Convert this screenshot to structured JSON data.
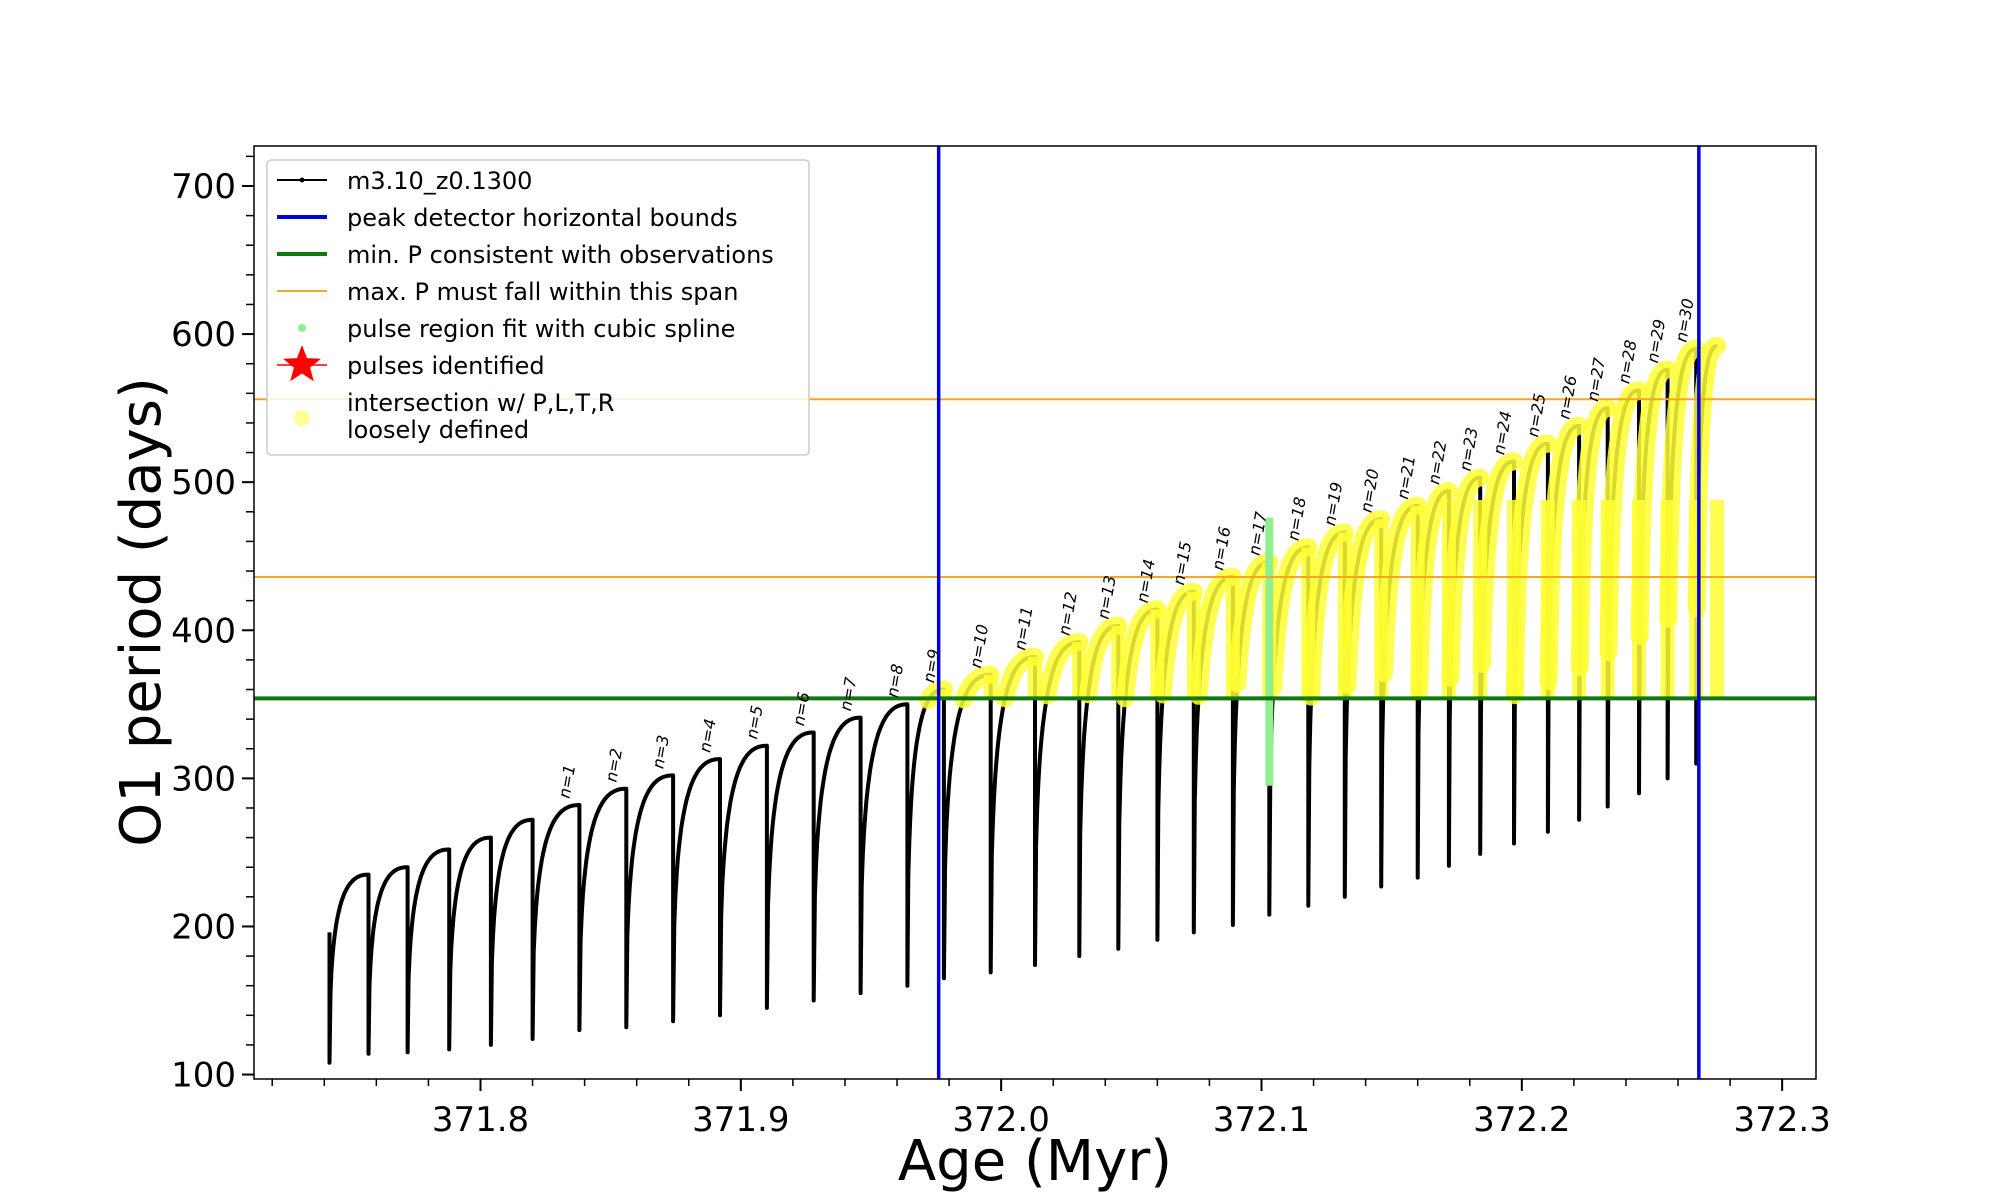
{
  "chart_data": {
    "type": "line",
    "title": "",
    "xlabel": "Age (Myr)",
    "ylabel": "O1 period (days)",
    "xlim": [
      371.713,
      372.313
    ],
    "ylim": [
      97,
      727
    ],
    "xticks": [
      "371.8",
      "371.9",
      "372.0",
      "372.1",
      "372.2",
      "372.3"
    ],
    "yticks": [
      "100",
      "200",
      "300",
      "400",
      "500",
      "600",
      "700"
    ],
    "grid": false,
    "legend_position": "upper-left",
    "legend": [
      {
        "key": "track",
        "label": "m3.10_z0.1300",
        "color": "#000000"
      },
      {
        "key": "bounds",
        "label": "peak detector horizontal bounds",
        "color": "#0000dd"
      },
      {
        "key": "minp",
        "label": "min. P consistent with observations",
        "color": "#117711"
      },
      {
        "key": "maxp",
        "label": "max. P must fall within this span",
        "color": "#f5a623"
      },
      {
        "key": "spline",
        "label": "pulse region fit with cubic spline",
        "color": "#90ee90"
      },
      {
        "key": "pulses",
        "label": "pulses identified",
        "color": "#ff0000"
      },
      {
        "key": "intersect",
        "label": "intersection w/ P,L,T,R\nloosely defined",
        "color": "#ffff66"
      }
    ],
    "vertical_lines": [
      371.976,
      372.268
    ],
    "min_period_line": 354,
    "max_period_span": [
      436,
      556
    ],
    "track_start": {
      "age": 371.742,
      "period_low": 108,
      "period_high": 196
    },
    "track_end_age": 372.275,
    "pulses": [
      {
        "label": "n=1",
        "age": 371.838,
        "min": 130,
        "max": 282
      },
      {
        "label": "n=2",
        "age": 371.856,
        "min": 132,
        "max": 293
      },
      {
        "label": "n=3",
        "age": 371.874,
        "min": 136,
        "max": 302
      },
      {
        "label": "n=4",
        "age": 371.892,
        "min": 140,
        "max": 313
      },
      {
        "label": "n=5",
        "age": 371.91,
        "min": 145,
        "max": 322
      },
      {
        "label": "n=6",
        "age": 371.928,
        "min": 150,
        "max": 331
      },
      {
        "label": "n=7",
        "age": 371.946,
        "min": 155,
        "max": 341
      },
      {
        "label": "n=8",
        "age": 371.964,
        "min": 160,
        "max": 350
      },
      {
        "label": "n=9",
        "age": 371.978,
        "min": 165,
        "max": 360
      },
      {
        "label": "n=10",
        "age": 371.996,
        "min": 169,
        "max": 370
      },
      {
        "label": "n=11",
        "age": 372.013,
        "min": 174,
        "max": 382
      },
      {
        "label": "n=12",
        "age": 372.03,
        "min": 180,
        "max": 392
      },
      {
        "label": "n=13",
        "age": 372.045,
        "min": 185,
        "max": 403
      },
      {
        "label": "n=14",
        "age": 372.06,
        "min": 191,
        "max": 414
      },
      {
        "label": "n=15",
        "age": 372.074,
        "min": 196,
        "max": 426
      },
      {
        "label": "n=16",
        "age": 372.089,
        "min": 201,
        "max": 436
      },
      {
        "label": "n=17",
        "age": 372.103,
        "min": 208,
        "max": 446
      },
      {
        "label": "n=18",
        "age": 372.118,
        "min": 214,
        "max": 456
      },
      {
        "label": "n=19",
        "age": 372.132,
        "min": 220,
        "max": 466
      },
      {
        "label": "n=20",
        "age": 372.146,
        "min": 227,
        "max": 475
      },
      {
        "label": "n=21",
        "age": 372.16,
        "min": 233,
        "max": 484
      },
      {
        "label": "n=22",
        "age": 372.172,
        "min": 241,
        "max": 494
      },
      {
        "label": "n=23",
        "age": 372.184,
        "min": 249,
        "max": 503
      },
      {
        "label": "n=24",
        "age": 372.197,
        "min": 256,
        "max": 514
      },
      {
        "label": "n=25",
        "age": 372.21,
        "min": 264,
        "max": 526
      },
      {
        "label": "n=26",
        "age": 372.222,
        "min": 272,
        "max": 538
      },
      {
        "label": "n=27",
        "age": 372.233,
        "min": 281,
        "max": 550
      },
      {
        "label": "n=28",
        "age": 372.245,
        "min": 290,
        "max": 562
      },
      {
        "label": "n=29",
        "age": 372.256,
        "min": 300,
        "max": 576
      },
      {
        "label": "n=30",
        "age": 372.267,
        "min": 310,
        "max": 590
      }
    ],
    "early_pulses": [
      {
        "age": 371.757,
        "min": 114,
        "max": 235
      },
      {
        "age": 371.772,
        "min": 115,
        "max": 240
      },
      {
        "age": 371.788,
        "min": 117,
        "max": 252
      },
      {
        "age": 371.804,
        "min": 120,
        "max": 260
      },
      {
        "age": 371.82,
        "min": 124,
        "max": 272
      }
    ],
    "spline_region": {
      "age": 372.103,
      "min": 295,
      "max": 476
    }
  }
}
